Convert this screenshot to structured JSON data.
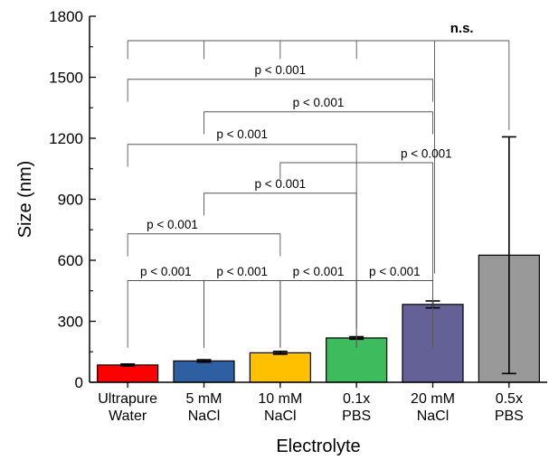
{
  "chart_data": {
    "type": "bar",
    "title": "",
    "xlabel": "Electrolyte",
    "ylabel": "Size (nm)",
    "ylim": [
      0,
      1800
    ],
    "yticks": [
      "0",
      "300",
      "600",
      "900",
      "1200",
      "1500",
      "1800"
    ],
    "categories": [
      [
        "Ultrapure",
        "Water"
      ],
      [
        "5 mM",
        "NaCl"
      ],
      [
        "10 mM",
        "NaCl"
      ],
      [
        "0.1x",
        "PBS"
      ],
      [
        "20 mM",
        "NaCl"
      ],
      [
        "0.5x",
        "PBS"
      ]
    ],
    "values": [
      85,
      105,
      145,
      218,
      383,
      625
    ],
    "errors": [
      5,
      6,
      7,
      6,
      17,
      582
    ],
    "bar_colors": [
      "#ff0000",
      "#2e5fa3",
      "#ffc000",
      "#3dbb5d",
      "#636196",
      "#999999"
    ],
    "grid": false,
    "significance": [
      {
        "from": 0,
        "to": 1,
        "label": "p < 0.001",
        "level": 640
      },
      {
        "from": 1,
        "to": 2,
        "label": "p < 0.001",
        "level": 640
      },
      {
        "from": 3,
        "to": 4,
        "label": "p < 0.001",
        "level": 640
      },
      {
        "from": 2,
        "to": 3,
        "label": "p < 0.001",
        "level": 640
      },
      {
        "from": 0,
        "to": 2,
        "label": "p < 0.001",
        "level": 930
      },
      {
        "from": 1,
        "to": 3,
        "label": "p < 0.001",
        "level": 1160
      },
      {
        "from": 2,
        "to": 4,
        "label": "p < 0.001",
        "level": 1360
      },
      {
        "from": 3,
        "to": 4,
        "label": "p < 0.001",
        "level": 1240,
        "text_above": 1250
      },
      {
        "from": 0,
        "to": 3,
        "label": "p < 0.001",
        "level": 1210,
        "text_above": 1250
      },
      {
        "from": 1,
        "to": 4,
        "label": "p < 0.001",
        "level": 1330,
        "text_above": 1400
      },
      {
        "from": 0,
        "to": 4,
        "label": "p < 0.001",
        "level": 1480,
        "text_above": 1560
      },
      {
        "from": [
          0,
          1,
          2,
          3,
          4
        ],
        "to": 5,
        "label": "n.s.",
        "level": 1680
      }
    ]
  }
}
